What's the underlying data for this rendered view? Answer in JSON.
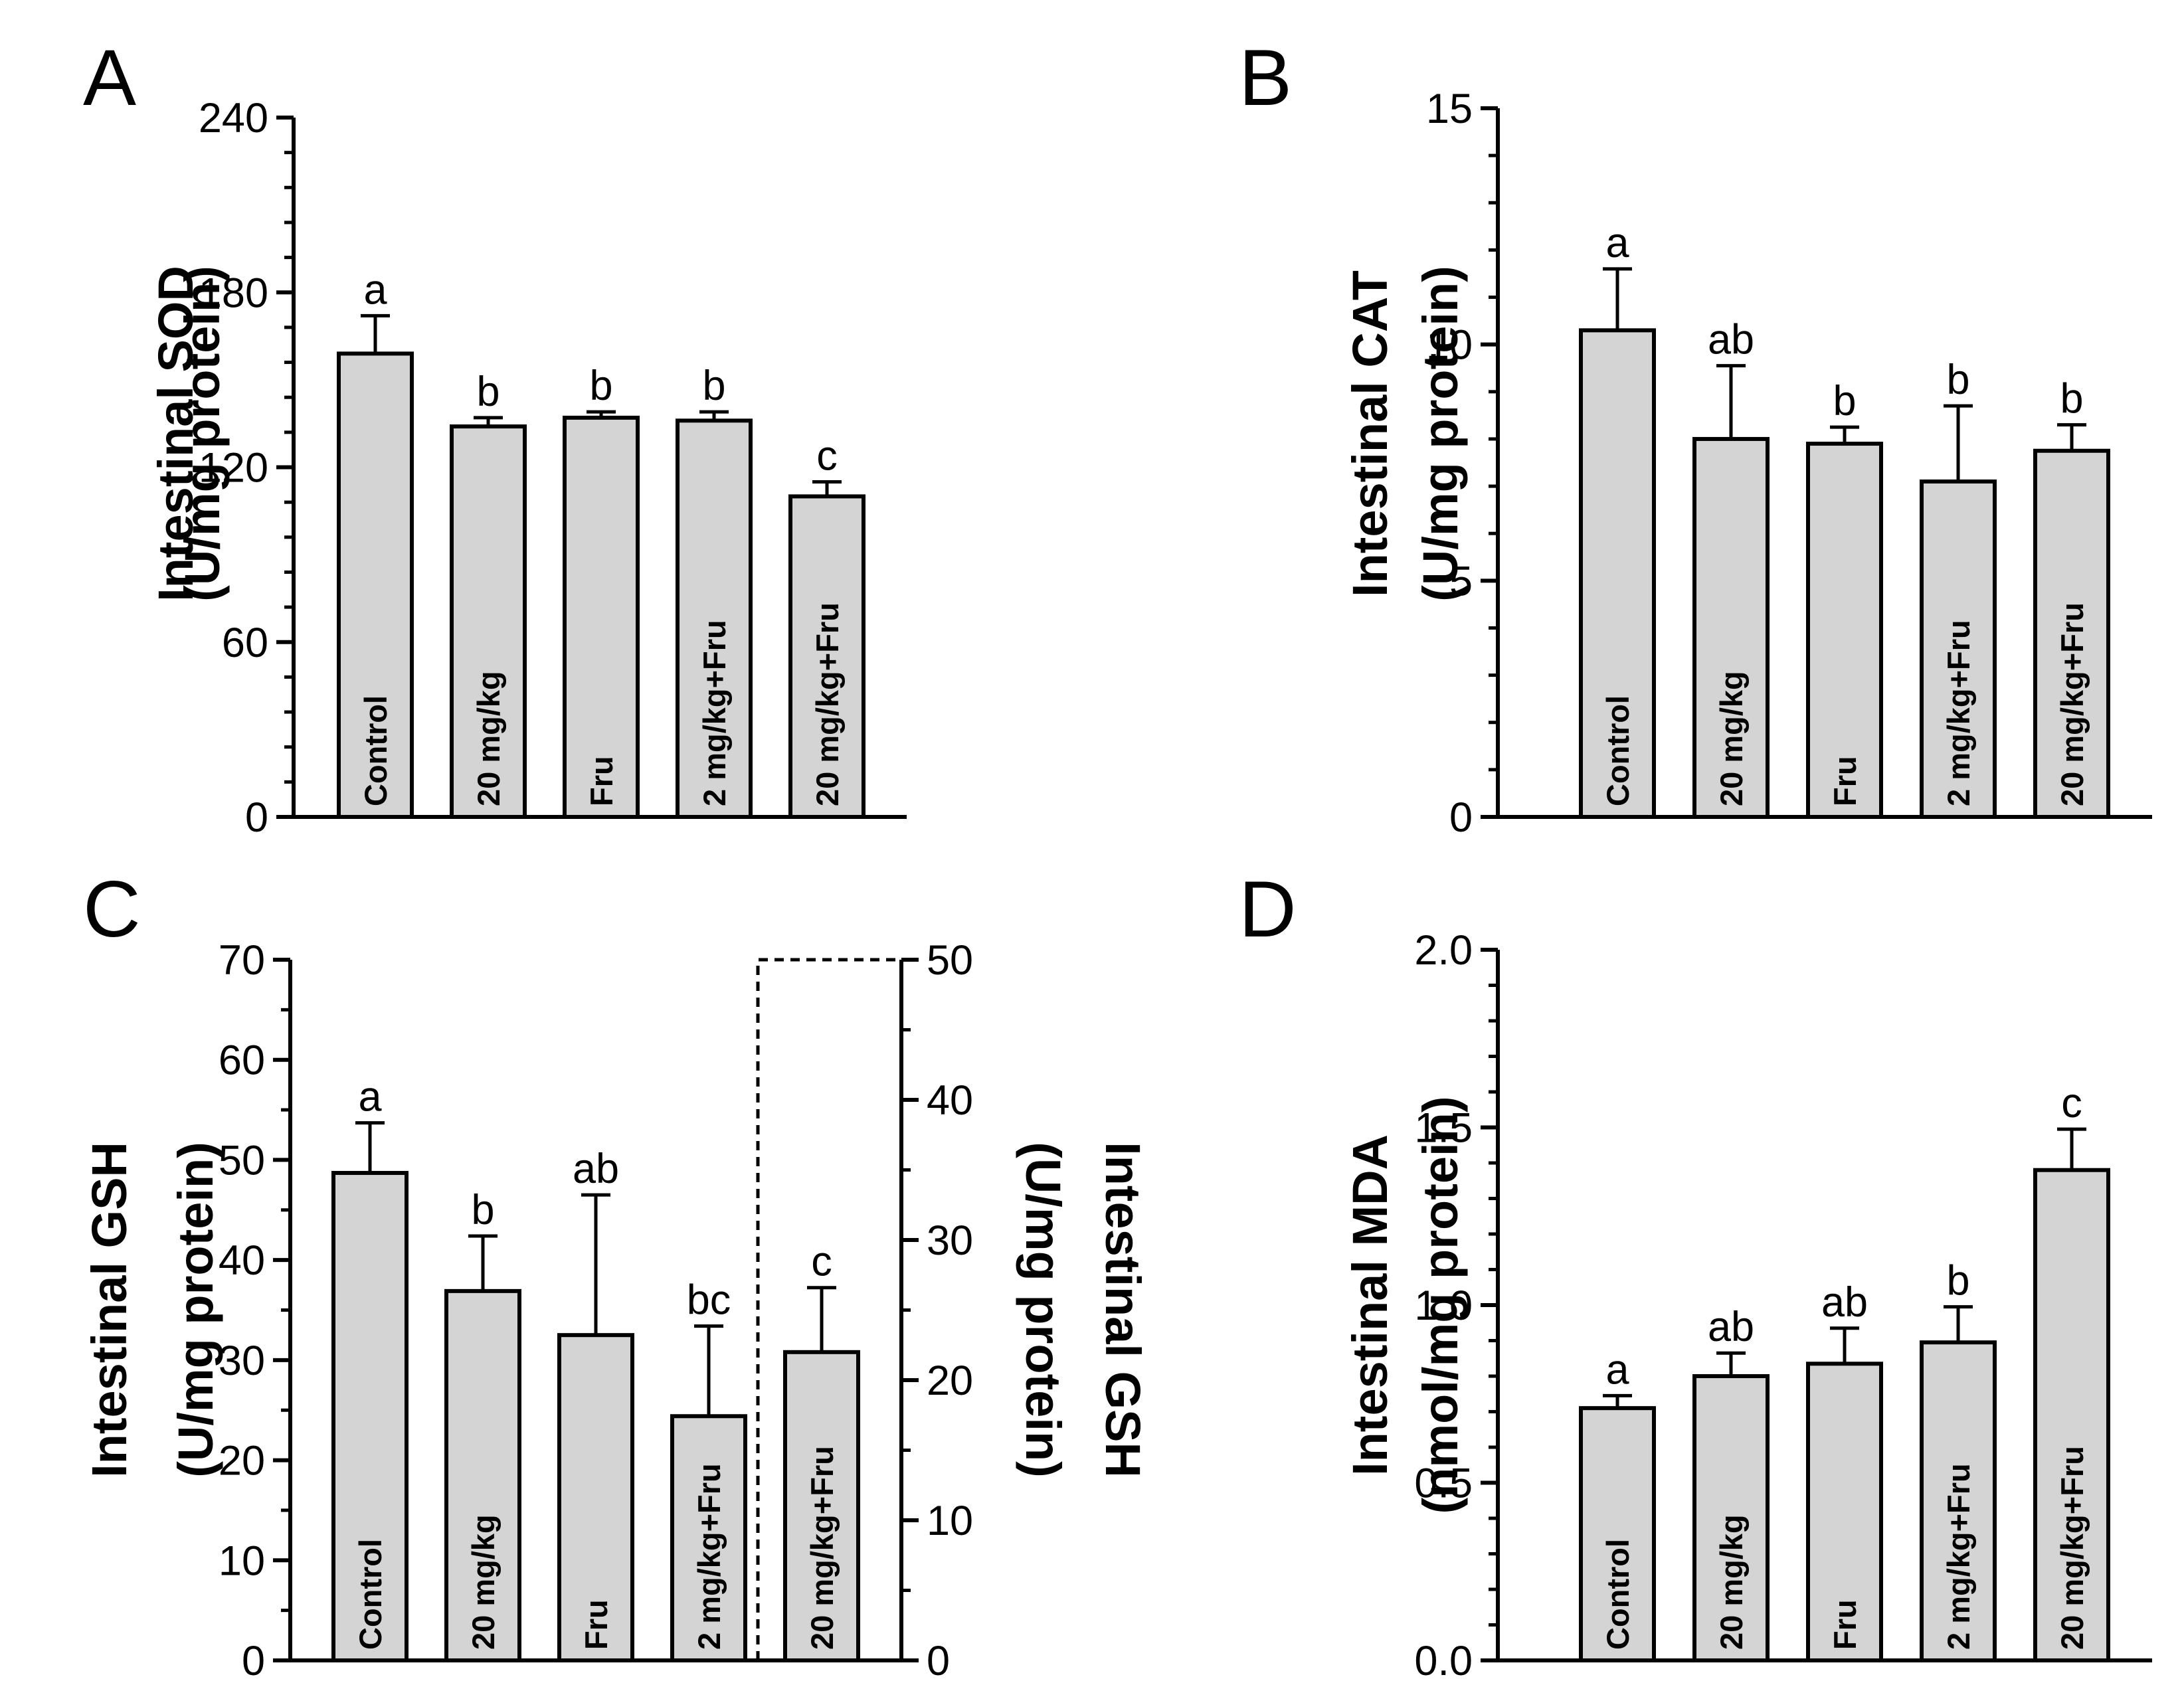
{
  "colors": {
    "bar_fill": "#d4d4d4",
    "stroke": "#000000",
    "background": "#ffffff"
  },
  "chart_data": [
    {
      "panel": "A",
      "type": "bar",
      "categories": [
        "Control",
        "20 mg/kg",
        "Fru",
        "2 mg/kg+Fru",
        "20 mg/kg+Fru"
      ],
      "values": [
        159,
        134,
        137,
        136,
        110
      ],
      "errors": [
        13,
        3,
        2,
        3,
        5
      ],
      "significance": [
        "a",
        "b",
        "b",
        "b",
        "c"
      ],
      "ylabel_lines": [
        "Intestinal SOD",
        "(U/mg protein)"
      ],
      "ylim": [
        0,
        240
      ],
      "yticks": [
        "0",
        "60",
        "120",
        "180",
        "240"
      ],
      "grid": false,
      "legend": "none"
    },
    {
      "panel": "B",
      "type": "bar",
      "categories": [
        "Control",
        "20 mg/kg",
        "Fru",
        "2 mg/kg+Fru",
        "20 mg/kg+Fru"
      ],
      "values": [
        10.3,
        8.0,
        7.9,
        7.1,
        7.75
      ],
      "errors": [
        1.3,
        1.55,
        0.35,
        1.6,
        0.55
      ],
      "significance": [
        "a",
        "ab",
        "b",
        "b",
        "b"
      ],
      "ylabel_lines": [
        "Intestinal CAT",
        "(U/mg protein)"
      ],
      "ylim": [
        0,
        15
      ],
      "yticks": [
        "0",
        "5",
        "10",
        "15"
      ],
      "grid": false,
      "legend": "none"
    },
    {
      "panel": "C",
      "type": "bar",
      "categories": [
        "Control",
        "20 mg/kg",
        "Fru",
        "2 mg/kg+Fru",
        "20 mg/kg+Fru"
      ],
      "values": [
        48.7,
        36.9,
        32.5,
        24.4,
        22.0
      ],
      "errors": [
        5.0,
        5.5,
        14.0,
        9.0,
        4.6
      ],
      "axis_for_bar": [
        "left",
        "left",
        "left",
        "left",
        "right"
      ],
      "significance": [
        "a",
        "b",
        "ab",
        "bc",
        "c"
      ],
      "ylabel_lines": [
        "Intestinal GSH",
        "(U/mg protein)"
      ],
      "ylim": [
        0,
        70
      ],
      "yticks": [
        "0",
        "10",
        "20",
        "30",
        "40",
        "50",
        "60",
        "70"
      ],
      "y2label_lines": [
        "Intestinal GSH",
        "(U/mg protein)"
      ],
      "y2lim": [
        0,
        50
      ],
      "y2ticks": [
        "0",
        "10",
        "20",
        "30",
        "40",
        "50"
      ],
      "grid": false,
      "legend": "none"
    },
    {
      "panel": "D",
      "type": "bar",
      "categories": [
        "Control",
        "20 mg/kg",
        "Fru",
        "2 mg/kg+Fru",
        "20 mg/kg+Fru"
      ],
      "values": [
        0.71,
        0.8,
        0.835,
        0.895,
        1.38
      ],
      "errors": [
        0.035,
        0.065,
        0.1,
        0.1,
        0.115
      ],
      "significance": [
        "a",
        "ab",
        "ab",
        "b",
        "c"
      ],
      "ylabel_lines": [
        "Intestinal MDA",
        "(nmol/mg protein)"
      ],
      "ylim": [
        0,
        2.0
      ],
      "yticks": [
        "0.0",
        "0.5",
        "1.0",
        "1.5",
        "2.0"
      ],
      "grid": false,
      "legend": "none"
    }
  ]
}
